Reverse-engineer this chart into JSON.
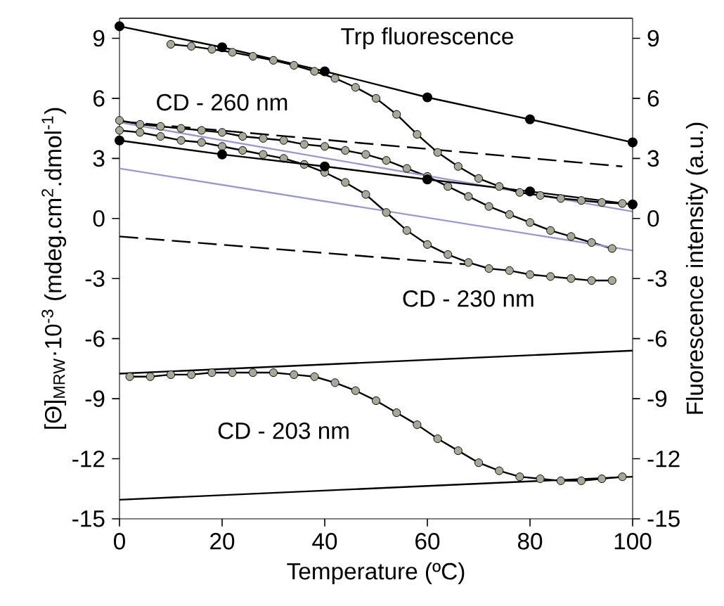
{
  "chart_data": {
    "type": "scatter",
    "xlabel": "Temperature (ºC)",
    "ylabel": "[Θ]$_{MRW}$·10$^{-3}$ (mdeg.cm$^{2}$.dmol$^{-1}$)",
    "y2label": "Fluorescence intensity (a.u.)",
    "xlim": [
      0,
      100
    ],
    "xticks": [
      0,
      20,
      40,
      60,
      80,
      100
    ],
    "ylim": [
      -15,
      10
    ],
    "yticks": [
      -15,
      -12,
      -9,
      -6,
      -3,
      0,
      3,
      6,
      9
    ],
    "y2lim": [
      -15,
      10
    ],
    "y2ticks": [
      -15,
      -12,
      -9,
      -6,
      -3,
      0,
      3,
      6,
      9
    ],
    "series": [
      {
        "axis": "y2",
        "color": "#a8a898",
        "x": [
          10,
          14,
          18,
          22,
          26,
          30,
          34,
          38,
          42,
          46,
          50,
          54,
          58,
          62,
          66,
          70,
          74,
          78,
          82,
          86,
          90,
          94,
          98
        ],
        "values": [
          8.7,
          8.6,
          8.45,
          8.3,
          8.1,
          7.9,
          7.65,
          7.35,
          7.0,
          6.55,
          6.0,
          5.2,
          4.2,
          3.3,
          2.6,
          2.0,
          1.6,
          1.3,
          1.15,
          1.0,
          0.9,
          0.8,
          0.75
        ]
      },
      {
        "type": "line",
        "axis": "y2",
        "color": "#000000",
        "marker": "none",
        "line_style": "solid",
        "x": [
          10,
          14,
          18,
          22,
          26,
          30,
          34,
          38,
          42,
          46,
          50,
          54,
          58,
          62,
          66,
          70,
          74,
          78,
          82,
          86,
          90,
          94,
          98
        ],
        "values": [
          8.7,
          8.6,
          8.45,
          8.3,
          8.1,
          7.9,
          7.65,
          7.35,
          7.0,
          6.55,
          6.0,
          5.2,
          4.2,
          3.3,
          2.6,
          2.0,
          1.6,
          1.3,
          1.15,
          1.0,
          0.9,
          0.8,
          0.75
        ]
      },
      {
        "type": "line",
        "axis": "y2",
        "color": "#000000",
        "marker": "circle",
        "line_style": "solid",
        "x": [
          0,
          20,
          40,
          60,
          80,
          100
        ],
        "values": [
          9.6,
          8.55,
          7.35,
          6.05,
          4.95,
          3.8
        ]
      },
      {
        "type": "line",
        "axis": "y2",
        "color": "#000000",
        "marker": "circle",
        "line_style": "solid",
        "x": [
          0,
          20,
          40,
          60,
          80,
          100
        ],
        "values": [
          3.9,
          3.2,
          2.6,
          1.95,
          1.35,
          0.7
        ]
      },
      {
        "color": "#a8a898",
        "x": [
          0,
          4,
          8,
          12,
          16,
          20,
          24,
          28,
          32,
          36,
          40,
          44,
          48,
          52,
          56,
          60,
          64,
          68,
          72,
          76,
          80,
          84,
          88,
          92,
          96
        ],
        "values": [
          4.9,
          4.7,
          4.6,
          4.5,
          4.4,
          4.3,
          4.1,
          4.0,
          3.9,
          3.7,
          3.6,
          3.4,
          3.2,
          2.9,
          2.5,
          2.1,
          1.6,
          1.1,
          0.6,
          0.2,
          -0.2,
          -0.6,
          -0.9,
          -1.2,
          -1.5
        ]
      },
      {
        "type": "line",
        "color": "#000000",
        "marker": "none",
        "line_style": "solid",
        "x": [
          0,
          4,
          8,
          12,
          16,
          20,
          24,
          28,
          32,
          36,
          40,
          44,
          48,
          52,
          56,
          60,
          64,
          68,
          72,
          76,
          80,
          84,
          88,
          92,
          96
        ],
        "values": [
          4.9,
          4.7,
          4.6,
          4.5,
          4.4,
          4.3,
          4.1,
          4.0,
          3.9,
          3.7,
          3.6,
          3.4,
          3.2,
          2.9,
          2.5,
          2.1,
          1.6,
          1.1,
          0.6,
          0.2,
          -0.2,
          -0.6,
          -0.9,
          -1.2,
          -1.5
        ]
      },
      {
        "color": "#a8a898",
        "x": [
          0,
          4,
          8,
          12,
          16,
          20,
          24,
          28,
          32,
          36,
          40,
          44,
          48,
          52,
          56,
          60,
          64,
          68,
          72,
          76,
          80,
          84,
          88,
          92,
          96
        ],
        "values": [
          4.4,
          4.3,
          4.1,
          3.9,
          3.8,
          3.6,
          3.4,
          3.2,
          3.0,
          2.7,
          2.3,
          1.8,
          1.2,
          0.3,
          -0.6,
          -1.3,
          -1.8,
          -2.2,
          -2.5,
          -2.6,
          -2.8,
          -2.9,
          -3.0,
          -3.1,
          -3.1
        ]
      },
      {
        "type": "line",
        "color": "#000000",
        "marker": "none",
        "line_style": "solid",
        "x": [
          0,
          4,
          8,
          12,
          16,
          20,
          24,
          28,
          32,
          36,
          40,
          44,
          48,
          52,
          56,
          60,
          64,
          68,
          72,
          76,
          80,
          84,
          88,
          92,
          96
        ],
        "values": [
          4.4,
          4.3,
          4.1,
          3.9,
          3.8,
          3.6,
          3.4,
          3.2,
          3.0,
          2.7,
          2.3,
          1.8,
          1.2,
          0.3,
          -0.6,
          -1.3,
          -1.8,
          -2.2,
          -2.5,
          -2.6,
          -2.8,
          -2.9,
          -3.0,
          -3.1,
          -3.1
        ]
      },
      {
        "type": "line",
        "color": "#000000",
        "marker": "none",
        "line_style": "dashed",
        "x": [
          0,
          98
        ],
        "values": [
          4.85,
          2.6
        ]
      },
      {
        "type": "line",
        "color": "#000000",
        "marker": "none",
        "line_style": "dashed",
        "x": [
          0,
          68
        ],
        "values": [
          -0.9,
          -2.3
        ]
      },
      {
        "type": "line",
        "color": "#9a9ac8",
        "marker": "none",
        "line_style": "solid",
        "x": [
          0,
          100
        ],
        "values": [
          4.8,
          0.35
        ]
      },
      {
        "type": "line",
        "color": "#9a9ac8",
        "marker": "none",
        "line_style": "solid",
        "x": [
          0,
          100
        ],
        "values": [
          2.5,
          -1.6
        ]
      },
      {
        "color": "#a8a898",
        "x": [
          2,
          6,
          10,
          14,
          18,
          22,
          26,
          30,
          34,
          38,
          42,
          46,
          50,
          54,
          58,
          62,
          66,
          70,
          74,
          78,
          82,
          86,
          90,
          94,
          98
        ],
        "values": [
          -7.9,
          -7.9,
          -7.8,
          -7.8,
          -7.7,
          -7.7,
          -7.7,
          -7.7,
          -7.8,
          -7.9,
          -8.2,
          -8.6,
          -9.1,
          -9.7,
          -10.3,
          -11.0,
          -11.6,
          -12.2,
          -12.6,
          -12.9,
          -13.0,
          -13.1,
          -13.1,
          -13.0,
          -12.9
        ]
      },
      {
        "type": "line",
        "color": "#000000",
        "marker": "none",
        "line_style": "solid",
        "x": [
          2,
          6,
          10,
          14,
          18,
          22,
          26,
          30,
          34,
          38,
          42,
          46,
          50,
          54,
          58,
          62,
          66,
          70,
          74,
          78,
          82,
          86,
          90,
          94,
          98
        ],
        "values": [
          -7.9,
          -7.9,
          -7.8,
          -7.8,
          -7.7,
          -7.7,
          -7.7,
          -7.7,
          -7.8,
          -7.9,
          -8.2,
          -8.6,
          -9.1,
          -9.7,
          -10.3,
          -11.0,
          -11.6,
          -12.2,
          -12.6,
          -12.9,
          -13.0,
          -13.1,
          -13.1,
          -13.0,
          -12.9
        ]
      },
      {
        "type": "line",
        "color": "#000000",
        "marker": "none",
        "line_style": "solid",
        "x": [
          0,
          100
        ],
        "values": [
          -7.75,
          -6.6
        ]
      },
      {
        "type": "line",
        "color": "#000000",
        "marker": "none",
        "line_style": "solid",
        "x": [
          0,
          100
        ],
        "values": [
          -14.05,
          -12.9
        ]
      }
    ],
    "annotations": [
      "Trp fluorescence",
      "CD - 260 nm",
      "CD - 230 nm",
      "CD - 203 nm"
    ]
  }
}
